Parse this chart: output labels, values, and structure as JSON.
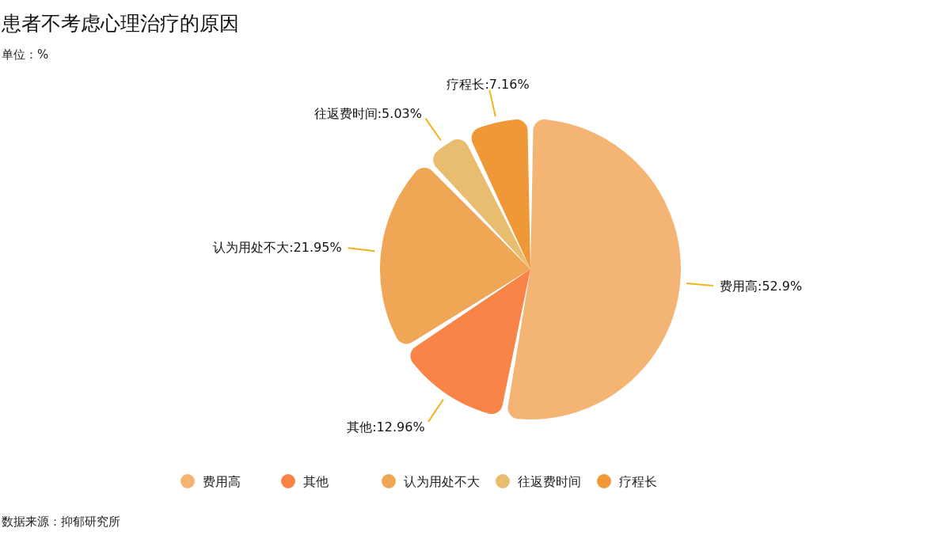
{
  "chart_data": {
    "type": "pie",
    "title": "患者不考虑心理治疗的原因",
    "subtitle": "单位：%",
    "categories": [
      "费用高",
      "其他",
      "认为用处不大",
      "往返费时间",
      "疗程长"
    ],
    "values": [
      52.9,
      12.96,
      21.95,
      5.03,
      7.16
    ],
    "value_labels": [
      ":52.9%",
      ":12.96%",
      ":21.95%",
      ":5.03%",
      ":7.16%"
    ],
    "colors": [
      "#f3b474",
      "#f98448",
      "#efa655",
      "#e8bd70",
      "#ef9838"
    ],
    "legend": "bottom",
    "annotations": [
      "数据来源：抑郁研究所"
    ]
  }
}
